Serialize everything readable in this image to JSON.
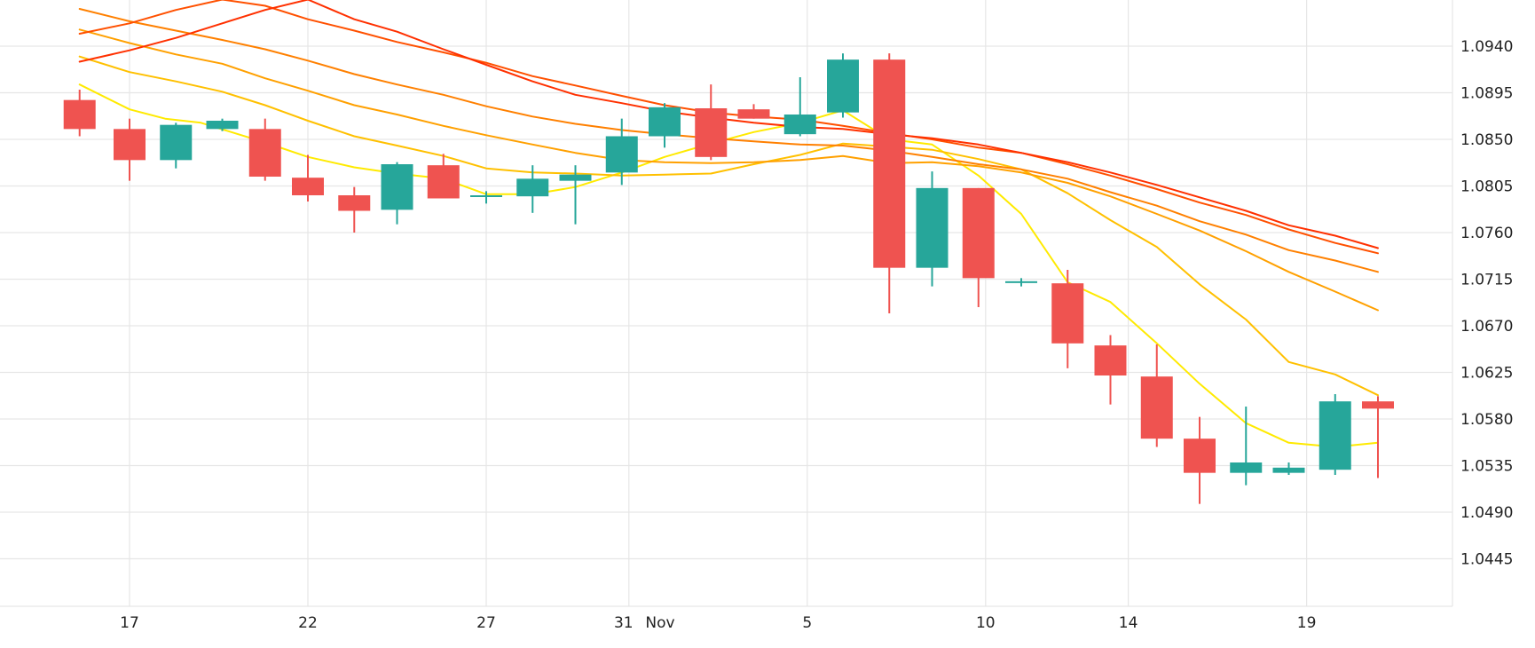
{
  "chart_data": {
    "type": "candlestick",
    "title": "",
    "xlabel": "",
    "ylabel": "",
    "ylim": [
      1.04,
      1.0985
    ],
    "y_ticks": [
      "1.0940",
      "1.0895",
      "1.0850",
      "1.0805",
      "1.0760",
      "1.0715",
      "1.0670",
      "1.0625",
      "1.0580",
      "1.0535",
      "1.0490",
      "1.0445"
    ],
    "x_ticks": [
      {
        "label": "17",
        "day": 17
      },
      {
        "label": "22",
        "day": 22
      },
      {
        "label": "27",
        "day": 27
      },
      {
        "label": "31",
        "day": 31
      },
      {
        "label": "Nov",
        "day": 32
      },
      {
        "label": "5",
        "day": 36
      },
      {
        "label": "10",
        "day": 41
      },
      {
        "label": "14",
        "day": 45
      },
      {
        "label": "19",
        "day": 50
      }
    ],
    "grid": true,
    "colors": {
      "up": "#26a69a",
      "down": "#ef5350",
      "grid": "#e6e6e6"
    },
    "candles": [
      {
        "day": 15.6,
        "o": 1.0888,
        "h": 1.0898,
        "l": 1.0853,
        "c": 1.086
      },
      {
        "day": 17.0,
        "o": 1.086,
        "h": 1.087,
        "l": 1.081,
        "c": 1.083
      },
      {
        "day": 18.3,
        "o": 1.083,
        "h": 1.0866,
        "l": 1.0822,
        "c": 1.0864
      },
      {
        "day": 19.6,
        "o": 1.086,
        "h": 1.087,
        "l": 1.0858,
        "c": 1.0868
      },
      {
        "day": 20.8,
        "o": 1.086,
        "h": 1.087,
        "l": 1.081,
        "c": 1.0814
      },
      {
        "day": 22.0,
        "o": 1.0813,
        "h": 1.0835,
        "l": 1.079,
        "c": 1.0796
      },
      {
        "day": 23.3,
        "o": 1.0796,
        "h": 1.0804,
        "l": 1.076,
        "c": 1.0781
      },
      {
        "day": 24.5,
        "o": 1.0782,
        "h": 1.0828,
        "l": 1.0768,
        "c": 1.0826
      },
      {
        "day": 25.8,
        "o": 1.0825,
        "h": 1.0836,
        "l": 1.0793,
        "c": 1.0793
      },
      {
        "day": 27.0,
        "o": 1.0795,
        "h": 1.08,
        "l": 1.0788,
        "c": 1.0796
      },
      {
        "day": 28.3,
        "o": 1.0795,
        "h": 1.0825,
        "l": 1.0779,
        "c": 1.0812
      },
      {
        "day": 29.5,
        "o": 1.081,
        "h": 1.0825,
        "l": 1.0768,
        "c": 1.0816
      },
      {
        "day": 30.8,
        "o": 1.0818,
        "h": 1.087,
        "l": 1.0806,
        "c": 1.0853
      },
      {
        "day": 32.0,
        "o": 1.0853,
        "h": 1.0885,
        "l": 1.0842,
        "c": 1.0881
      },
      {
        "day": 33.3,
        "o": 1.088,
        "h": 1.0903,
        "l": 1.083,
        "c": 1.0833
      },
      {
        "day": 34.5,
        "o": 1.0879,
        "h": 1.0884,
        "l": 1.087,
        "c": 1.087
      },
      {
        "day": 35.8,
        "o": 1.0855,
        "h": 1.091,
        "l": 1.0853,
        "c": 1.0874
      },
      {
        "day": 37.0,
        "o": 1.0876,
        "h": 1.0933,
        "l": 1.0871,
        "c": 1.0927
      },
      {
        "day": 38.3,
        "o": 1.0927,
        "h": 1.0933,
        "l": 1.0682,
        "c": 1.0726
      },
      {
        "day": 39.5,
        "o": 1.0726,
        "h": 1.0819,
        "l": 1.0708,
        "c": 1.0803
      },
      {
        "day": 40.8,
        "o": 1.0803,
        "h": 1.0803,
        "l": 1.0688,
        "c": 1.0716
      },
      {
        "day": 42.0,
        "o": 1.0713,
        "h": 1.0716,
        "l": 1.0708,
        "c": 1.0713
      },
      {
        "day": 43.3,
        "o": 1.0711,
        "h": 1.0724,
        "l": 1.0629,
        "c": 1.0653
      },
      {
        "day": 44.5,
        "o": 1.0651,
        "h": 1.0661,
        "l": 1.0594,
        "c": 1.0622
      },
      {
        "day": 45.8,
        "o": 1.0621,
        "h": 1.0652,
        "l": 1.0553,
        "c": 1.0561
      },
      {
        "day": 47.0,
        "o": 1.0561,
        "h": 1.0582,
        "l": 1.0498,
        "c": 1.0528
      },
      {
        "day": 48.3,
        "o": 1.0528,
        "h": 1.0592,
        "l": 1.0516,
        "c": 1.0538
      },
      {
        "day": 49.5,
        "o": 1.0528,
        "h": 1.0538,
        "l": 1.0526,
        "c": 1.0533
      },
      {
        "day": 50.8,
        "o": 1.0531,
        "h": 1.0604,
        "l": 1.0526,
        "c": 1.0597
      },
      {
        "day": 52.0,
        "o": 1.0597,
        "h": 1.0602,
        "l": 1.0523,
        "c": 1.059
      }
    ],
    "series": [
      {
        "type": "line",
        "color": "#ffea00",
        "points": [
          [
            15.6,
            1.0903
          ],
          [
            17.0,
            1.0879
          ],
          [
            18.0,
            1.087
          ],
          [
            19.0,
            1.0866
          ],
          [
            20.8,
            1.0847
          ],
          [
            22.0,
            1.0833
          ],
          [
            23.3,
            1.0823
          ],
          [
            24.5,
            1.0817
          ],
          [
            25.8,
            1.0812
          ],
          [
            27.0,
            1.0797
          ],
          [
            28.3,
            1.0797
          ],
          [
            29.5,
            1.0804
          ],
          [
            30.8,
            1.0818
          ],
          [
            32.0,
            1.0833
          ],
          [
            33.3,
            1.0846
          ],
          [
            34.5,
            1.0857
          ],
          [
            35.8,
            1.0866
          ],
          [
            37.0,
            1.0878
          ],
          [
            38.3,
            1.085
          ],
          [
            39.5,
            1.0845
          ],
          [
            40.8,
            1.0815
          ],
          [
            42.0,
            1.0778
          ],
          [
            43.3,
            1.0712
          ],
          [
            44.5,
            1.0693
          ],
          [
            45.8,
            1.0653
          ],
          [
            47.0,
            1.0614
          ],
          [
            48.3,
            1.0576
          ],
          [
            49.5,
            1.0557
          ],
          [
            50.8,
            1.0553
          ],
          [
            52.0,
            1.0557
          ]
        ]
      },
      {
        "type": "line",
        "color": "#ffc000",
        "points": [
          [
            15.6,
            1.093
          ],
          [
            17.0,
            1.0915
          ],
          [
            18.3,
            1.0906
          ],
          [
            19.6,
            1.0896
          ],
          [
            20.8,
            1.0883
          ],
          [
            22.0,
            1.0868
          ],
          [
            23.3,
            1.0853
          ],
          [
            24.5,
            1.0844
          ],
          [
            25.8,
            1.0834
          ],
          [
            27.0,
            1.0822
          ],
          [
            28.3,
            1.0818
          ],
          [
            29.5,
            1.0817
          ],
          [
            30.8,
            1.0815
          ],
          [
            32.0,
            1.0816
          ],
          [
            33.3,
            1.0817
          ],
          [
            34.5,
            1.0826
          ],
          [
            35.8,
            1.0835
          ],
          [
            37.0,
            1.0846
          ],
          [
            38.3,
            1.0843
          ],
          [
            39.5,
            1.084
          ],
          [
            40.8,
            1.0831
          ],
          [
            42.0,
            1.0821
          ],
          [
            43.3,
            1.0798
          ],
          [
            44.5,
            1.0772
          ],
          [
            45.8,
            1.0746
          ],
          [
            47.0,
            1.071
          ],
          [
            48.3,
            1.0676
          ],
          [
            49.5,
            1.0635
          ],
          [
            50.8,
            1.0623
          ],
          [
            52.0,
            1.0603
          ]
        ]
      },
      {
        "type": "line",
        "color": "#ffa000",
        "points": [
          [
            15.6,
            1.0956
          ],
          [
            17.0,
            1.0943
          ],
          [
            18.3,
            1.0932
          ],
          [
            19.6,
            1.0923
          ],
          [
            20.8,
            1.0909
          ],
          [
            22.0,
            1.0897
          ],
          [
            23.3,
            1.0883
          ],
          [
            24.5,
            1.0874
          ],
          [
            25.8,
            1.0863
          ],
          [
            27.0,
            1.0854
          ],
          [
            28.3,
            1.0845
          ],
          [
            29.5,
            1.0837
          ],
          [
            30.8,
            1.083
          ],
          [
            32.0,
            1.0828
          ],
          [
            33.3,
            1.0827
          ],
          [
            34.5,
            1.0828
          ],
          [
            35.8,
            1.083
          ],
          [
            37.0,
            1.0834
          ],
          [
            38.3,
            1.0827
          ],
          [
            39.5,
            1.0828
          ],
          [
            40.8,
            1.0824
          ],
          [
            42.0,
            1.0818
          ],
          [
            43.3,
            1.0808
          ],
          [
            44.5,
            1.0795
          ],
          [
            45.8,
            1.0778
          ],
          [
            47.0,
            1.0762
          ],
          [
            48.3,
            1.0742
          ],
          [
            49.5,
            1.0722
          ],
          [
            50.8,
            1.0703
          ],
          [
            52.0,
            1.0685
          ]
        ]
      },
      {
        "type": "line",
        "color": "#ff8000",
        "points": [
          [
            15.6,
            1.0976
          ],
          [
            17.0,
            1.0964
          ],
          [
            18.3,
            1.0955
          ],
          [
            19.6,
            1.0946
          ],
          [
            20.8,
            1.0937
          ],
          [
            22.0,
            1.0926
          ],
          [
            23.3,
            1.0913
          ],
          [
            24.5,
            1.0903
          ],
          [
            25.8,
            1.0893
          ],
          [
            27.0,
            1.0882
          ],
          [
            28.3,
            1.0872
          ],
          [
            29.5,
            1.0865
          ],
          [
            30.8,
            1.0859
          ],
          [
            32.0,
            1.0855
          ],
          [
            33.3,
            1.0851
          ],
          [
            34.5,
            1.0848
          ],
          [
            35.8,
            1.0845
          ],
          [
            37.0,
            1.0844
          ],
          [
            38.3,
            1.0839
          ],
          [
            39.5,
            1.0833
          ],
          [
            40.8,
            1.0826
          ],
          [
            42.0,
            1.0821
          ],
          [
            43.3,
            1.0812
          ],
          [
            44.5,
            1.0799
          ],
          [
            45.8,
            1.0786
          ],
          [
            47.0,
            1.0771
          ],
          [
            48.3,
            1.0758
          ],
          [
            49.5,
            1.0743
          ],
          [
            50.8,
            1.0733
          ],
          [
            52.0,
            1.0722
          ]
        ]
      },
      {
        "type": "line",
        "color": "#ff5000",
        "points": [
          [
            15.6,
            1.0952
          ],
          [
            17.0,
            1.0962
          ],
          [
            18.3,
            1.0975
          ],
          [
            19.6,
            1.0985
          ],
          [
            20.8,
            1.0979
          ],
          [
            22.0,
            1.0966
          ],
          [
            23.3,
            1.0955
          ],
          [
            24.5,
            1.0944
          ],
          [
            25.8,
            1.0934
          ],
          [
            27.0,
            1.0924
          ],
          [
            28.3,
            1.0911
          ],
          [
            29.5,
            1.0902
          ],
          [
            30.8,
            1.0892
          ],
          [
            32.0,
            1.0883
          ],
          [
            33.3,
            1.0876
          ],
          [
            34.5,
            1.0872
          ],
          [
            35.8,
            1.0869
          ],
          [
            37.0,
            1.0863
          ],
          [
            38.3,
            1.0856
          ],
          [
            39.5,
            1.085
          ],
          [
            40.8,
            1.0842
          ],
          [
            42.0,
            1.0837
          ],
          [
            43.3,
            1.0826
          ],
          [
            44.5,
            1.0815
          ],
          [
            45.8,
            1.0802
          ],
          [
            47.0,
            1.0789
          ],
          [
            48.3,
            1.0777
          ],
          [
            49.5,
            1.0763
          ],
          [
            50.8,
            1.075
          ],
          [
            52.0,
            1.074
          ]
        ]
      },
      {
        "type": "line",
        "color": "#ff3000",
        "points": [
          [
            15.6,
            1.0925
          ],
          [
            17.0,
            1.0936
          ],
          [
            18.3,
            1.0948
          ],
          [
            19.6,
            1.0962
          ],
          [
            20.8,
            1.0975
          ],
          [
            22.0,
            1.0985
          ],
          [
            23.3,
            1.0966
          ],
          [
            24.5,
            1.0954
          ],
          [
            25.8,
            1.0937
          ],
          [
            27.0,
            1.0922
          ],
          [
            28.3,
            1.0906
          ],
          [
            29.5,
            1.0893
          ],
          [
            30.8,
            1.0885
          ],
          [
            32.0,
            1.0877
          ],
          [
            33.3,
            1.0871
          ],
          [
            34.5,
            1.0866
          ],
          [
            35.8,
            1.0862
          ],
          [
            37.0,
            1.086
          ],
          [
            38.3,
            1.0855
          ],
          [
            39.5,
            1.0851
          ],
          [
            40.8,
            1.0845
          ],
          [
            42.0,
            1.0837
          ],
          [
            43.3,
            1.0828
          ],
          [
            44.5,
            1.0818
          ],
          [
            45.8,
            1.0806
          ],
          [
            47.0,
            1.0794
          ],
          [
            48.3,
            1.0781
          ],
          [
            49.5,
            1.0767
          ],
          [
            50.8,
            1.0757
          ],
          [
            52.0,
            1.0745
          ]
        ]
      }
    ]
  }
}
